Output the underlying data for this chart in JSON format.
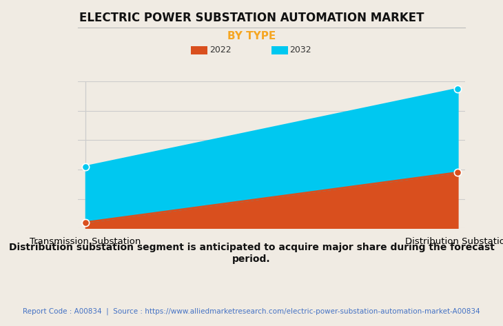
{
  "title": "ELECTRIC POWER SUBSTATION AUTOMATION MARKET",
  "subtitle": "BY TYPE",
  "subtitle_color": "#f5a623",
  "categories": [
    "Transmission Substation",
    "Distribution Substation"
  ],
  "years": [
    "2022",
    "2032"
  ],
  "values_2022": [
    0.4,
    3.8
  ],
  "values_2032": [
    4.2,
    9.5
  ],
  "color_2022": "#d94f1e",
  "color_2032": "#00c8f0",
  "background_color": "#f0ebe3",
  "plot_background_color": "#f0ebe3",
  "grid_color": "#cccccc",
  "ylim": [
    0,
    10
  ],
  "dot_size": 55,
  "line_width": 2.0,
  "annotation_text": "Distribution substation segment is anticipated to acquire major share during the forecast\nperiod.",
  "footer_text": "Report Code : A00834  |  Source : https://www.alliedmarketresearch.com/electric-power-substation-automation-market-A00834",
  "footer_color": "#4472c4",
  "title_fontsize": 12,
  "subtitle_fontsize": 11,
  "legend_fontsize": 9,
  "annotation_fontsize": 10,
  "footer_fontsize": 7.5,
  "axis_label_fontsize": 9.5
}
